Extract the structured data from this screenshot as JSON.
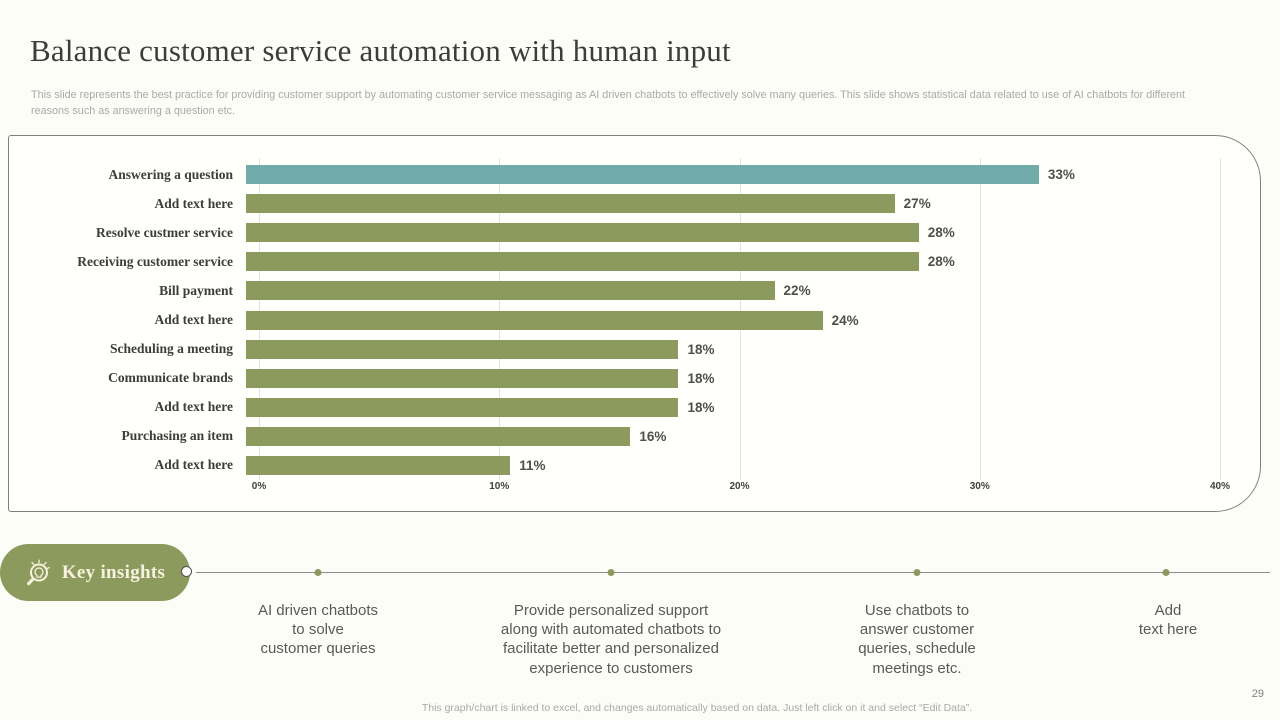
{
  "page": {
    "title": "Balance customer service automation with human input",
    "subtitle": "This slide represents the best practice for providing customer support by automating customer service messaging as AI driven chatbots to effectively  solve many queries. This slide shows statistical data related to use of AI chatbots for different reasons such as answering a question etc.",
    "footer_note": "This graph/chart is linked to excel,  and changes automatically based on data. Just left click on it and select “Edit Data”.",
    "page_number": "29"
  },
  "chart_data": {
    "type": "bar",
    "orientation": "horizontal",
    "title": "",
    "categories": [
      "Answering a question",
      "Add text here",
      "Resolve custmer service",
      "Receiving customer service",
      "Bill payment",
      "Add text here",
      "Scheduling a meeting",
      "Communicate brands",
      "Add text here",
      "Purchasing an item",
      "Add text here"
    ],
    "values": [
      33,
      27,
      28,
      28,
      22,
      24,
      18,
      18,
      18,
      16,
      11
    ],
    "value_label_format": "percent",
    "x_ticks": [
      "0%",
      "10%",
      "20%",
      "30%",
      "40%"
    ],
    "xlim": [
      0,
      40
    ],
    "grid": true,
    "legend": false,
    "highlight_index": 0,
    "colors": {
      "highlight": "#71ACAA",
      "default": "#8C9A5D"
    }
  },
  "insights": {
    "label": "Key insights",
    "icon": "magnifier-lightbulb-icon",
    "items": [
      {
        "text": "AI driven chatbots\nto solve\ncustomer queries"
      },
      {
        "text": "Provide personalized support\nalong with automated chatbots to\nfacilitate better and personalized\nexperience to customers"
      },
      {
        "text": "Use chatbots to\nanswer customer\nqueries, schedule\nmeetings etc."
      },
      {
        "text": "Add\ntext here"
      }
    ]
  }
}
